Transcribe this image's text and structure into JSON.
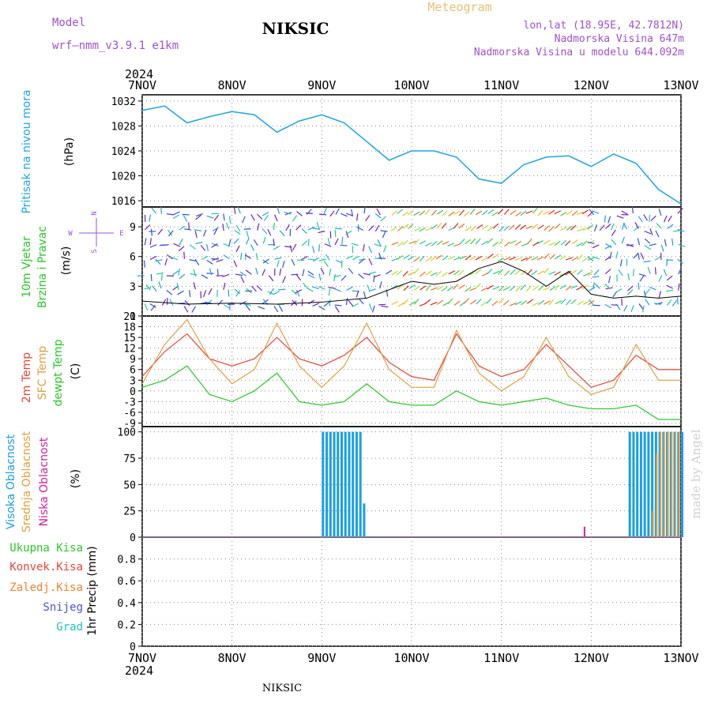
{
  "header": {
    "model_label": "Model",
    "model_name": "wrf–nmm_v3.9.1  e1km",
    "title": "NIKSIC",
    "subtitle": "Meteogram",
    "lonlat": "lon,lat (18.95E, 42.7812N)",
    "elevation": "Nadmorska Visina 647m",
    "model_elevation": "Nadmorska Visina u modelu 644.092m",
    "credit": "made by Angel",
    "footer_title": "NIKSIC",
    "year_top": "2024",
    "year_bottom": "2024"
  },
  "colors": {
    "pressure": "#1ba5e6",
    "temp2m": "#e8443a",
    "sfc": "#e0a040",
    "dewpt": "#28c828",
    "high_cloud": "#1a9ee8",
    "mid_cloud": "#e0a040",
    "low_cloud": "#d020a0",
    "model": "#a050d0",
    "meteogram": "#e8c070",
    "credit": "#d0d0d0"
  },
  "x_axis": {
    "ticks": [
      "7NOV",
      "8NOV",
      "9NOV",
      "10NOV",
      "11NOV",
      "12NOV",
      "13NOV"
    ]
  },
  "panels": {
    "pressure": {
      "labels": [
        "Pritisak na nivou mora"
      ],
      "unit": "(hPa)",
      "ticks": [
        "1032",
        "1028",
        "1024",
        "1020",
        "1016"
      ]
    },
    "wind": {
      "labels": [
        "10m Vjetar",
        "Brzina i Pravac"
      ],
      "unit": "(m/s)",
      "ticks": [
        "9",
        "6",
        "3",
        "0"
      ],
      "compass": {
        "n": "N",
        "s": "S",
        "w": "W",
        "e": "E"
      }
    },
    "temp": {
      "labels": [
        "2m Temp",
        "SFC Temp",
        "dewpt Temp"
      ],
      "unit": "(C)",
      "ticks": [
        "21",
        "18",
        "15",
        "12",
        "9",
        "6",
        "3",
        "0",
        "-3",
        "-6",
        "-9"
      ]
    },
    "cloud": {
      "labels": [
        "Visoka Oblacnost",
        "Srednja Oblacnost",
        "Niska Oblacnost"
      ],
      "unit": "(%)",
      "ticks": [
        "100",
        "75",
        "50",
        "25",
        "0"
      ]
    },
    "precip": {
      "labels": [
        "Ukupna Kisa",
        "Konvek.Kisa",
        "Zaledj.Kisa",
        "Snijeg",
        "Grad"
      ],
      "label_colors": [
        "#28c828",
        "#e8443a",
        "#f08030",
        "#5050e0",
        "#20c0c0"
      ],
      "unit": "1hr Precip (mm)",
      "ticks": [
        "0.8",
        "0.6",
        "0.4",
        "0.2",
        "0"
      ]
    }
  },
  "chart_data": [
    {
      "type": "line",
      "title": "Pritisak na nivou mora",
      "ylabel": "(hPa)",
      "ylim": [
        1015,
        1033
      ],
      "x_unit": "hours since 7NOV 00Z",
      "x": [
        0,
        6,
        12,
        18,
        24,
        30,
        36,
        42,
        48,
        54,
        60,
        66,
        72,
        78,
        84,
        90,
        96,
        102,
        108,
        114,
        120,
        126,
        132,
        138,
        144
      ],
      "series": [
        {
          "name": "",
          "values": [
            1030.5,
            1031.2,
            1028.5,
            1029.5,
            1030.3,
            1029.8,
            1027.0,
            1028.8,
            1029.8,
            1028.5,
            1025.5,
            1022.5,
            1024.0,
            1024.0,
            1023.0,
            1019.5,
            1018.8,
            1021.8,
            1023.0,
            1023.2,
            1021.5,
            1023.5,
            1022.0,
            1017.8,
            1015.5
          ]
        }
      ]
    },
    {
      "type": "line",
      "title": "10m Vjetar Brzina i Pravac",
      "ylabel": "(m/s)",
      "ylim": [
        0,
        11
      ],
      "x_unit": "hours since 7NOV 00Z",
      "x": [
        0,
        12,
        24,
        36,
        48,
        60,
        72,
        78,
        84,
        90,
        96,
        102,
        108,
        114,
        120,
        126,
        132,
        138,
        144
      ],
      "series": [
        {
          "name": "",
          "values": [
            1.5,
            1.2,
            1.3,
            1.2,
            1.4,
            1.8,
            3.5,
            3.2,
            3.5,
            4.8,
            5.5,
            4.5,
            3.0,
            4.5,
            2.2,
            1.8,
            2.0,
            1.8,
            2.0
          ]
        }
      ]
    },
    {
      "type": "line",
      "title": "Temp",
      "ylabel": "(C)",
      "ylim": [
        -10,
        21
      ],
      "x_unit": "hours since 7NOV 00Z",
      "x": [
        0,
        6,
        12,
        18,
        24,
        30,
        36,
        42,
        48,
        54,
        60,
        66,
        72,
        78,
        84,
        90,
        96,
        102,
        108,
        114,
        120,
        126,
        132,
        138,
        144
      ],
      "series": [
        {
          "name": "2m Temp",
          "values": [
            4,
            11,
            16,
            9,
            7,
            9,
            15,
            9,
            7,
            10,
            15,
            8,
            4,
            3,
            16,
            7,
            4,
            6,
            13,
            7,
            1,
            3,
            10,
            6,
            6
          ]
        },
        {
          "name": "SFC Temp",
          "values": [
            2,
            13,
            20,
            9,
            2,
            6,
            19,
            7,
            1,
            7,
            19,
            6,
            1,
            1,
            17,
            5,
            0,
            4,
            15,
            4,
            -1,
            1,
            13,
            3,
            3
          ]
        },
        {
          "name": "dewpt Temp",
          "values": [
            1,
            3,
            7,
            -1,
            -3,
            0,
            5,
            -3,
            -4,
            -3,
            2,
            -3,
            -4,
            -4,
            0,
            -3,
            -4,
            -3,
            -2,
            -4,
            -5,
            -5,
            -4,
            -8,
            -8
          ]
        }
      ]
    },
    {
      "type": "bar",
      "title": "Oblacnost",
      "ylabel": "(%)",
      "ylim": [
        0,
        105
      ],
      "x_unit": "hours since 7NOV 00Z",
      "series": [
        {
          "name": "Visoka Oblacnost",
          "x": [
            48,
            49,
            50,
            51,
            52,
            53,
            54,
            55,
            56,
            57,
            58,
            59,
            130,
            131,
            132,
            133,
            134,
            135,
            136,
            137,
            138,
            139,
            140,
            141,
            142,
            143,
            144
          ],
          "values": [
            100,
            100,
            100,
            100,
            100,
            100,
            100,
            100,
            100,
            100,
            100,
            32,
            100,
            100,
            100,
            100,
            100,
            100,
            100,
            100,
            100,
            100,
            100,
            100,
            100,
            100,
            100
          ]
        },
        {
          "name": "Srednja Oblacnost",
          "x": [
            136,
            137,
            138,
            139,
            140,
            141,
            142,
            143
          ],
          "values": [
            25,
            80,
            100,
            100,
            100,
            100,
            100,
            100
          ]
        },
        {
          "name": "Niska Oblacnost",
          "x": [
            118
          ],
          "values": [
            10
          ]
        }
      ]
    },
    {
      "type": "bar",
      "title": "1hr Precip",
      "ylabel": "(mm)",
      "ylim": [
        0,
        1
      ],
      "x_unit": "hours since 7NOV 00Z",
      "series": [
        {
          "name": "Ukupna Kisa",
          "x": [],
          "values": []
        }
      ]
    }
  ]
}
